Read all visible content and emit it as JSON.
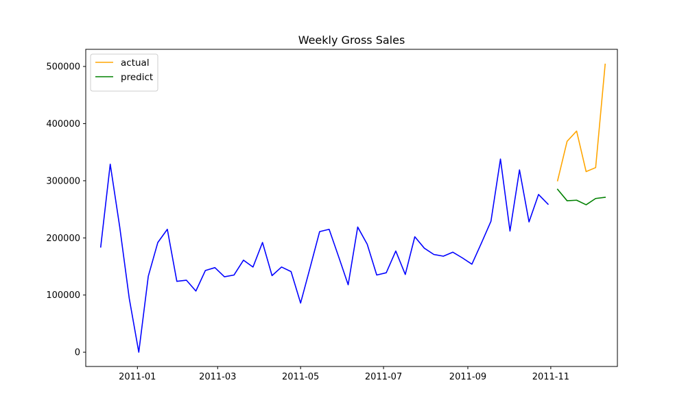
{
  "chart_data": {
    "type": "line",
    "title": "Weekly Gross Sales",
    "xlabel": "",
    "ylabel": "",
    "x_axis": "date",
    "xlim": [
      "2010-11-24",
      "2011-12-20"
    ],
    "ylim": [
      -25000,
      530000
    ],
    "x_ticks": [
      "2011-01-01",
      "2011-03-01",
      "2011-05-01",
      "2011-07-01",
      "2011-09-01",
      "2011-11-01"
    ],
    "x_tick_labels": [
      "2011-01",
      "2011-03",
      "2011-05",
      "2011-07",
      "2011-09",
      "2011-11"
    ],
    "y_ticks": [
      0,
      100000,
      200000,
      300000,
      400000,
      500000
    ],
    "y_tick_labels": [
      "0",
      "100000",
      "200000",
      "300000",
      "400000",
      "500000"
    ],
    "grid": false,
    "legend_position": "top-left",
    "series": [
      {
        "name": "",
        "color": "#0000ff",
        "x": [
          "2010-12-05",
          "2010-12-12",
          "2010-12-19",
          "2010-12-26",
          "2011-01-02",
          "2011-01-09",
          "2011-01-16",
          "2011-01-23",
          "2011-01-30",
          "2011-02-06",
          "2011-02-13",
          "2011-02-20",
          "2011-02-27",
          "2011-03-06",
          "2011-03-13",
          "2011-03-20",
          "2011-03-27",
          "2011-04-03",
          "2011-04-10",
          "2011-04-17",
          "2011-04-24",
          "2011-05-01",
          "2011-05-08",
          "2011-05-15",
          "2011-05-22",
          "2011-05-29",
          "2011-06-05",
          "2011-06-12",
          "2011-06-19",
          "2011-06-26",
          "2011-07-03",
          "2011-07-10",
          "2011-07-17",
          "2011-07-24",
          "2011-07-31",
          "2011-08-07",
          "2011-08-14",
          "2011-08-21",
          "2011-08-28",
          "2011-09-04",
          "2011-09-11",
          "2011-09-18",
          "2011-09-25",
          "2011-10-02",
          "2011-10-09",
          "2011-10-16",
          "2011-10-23",
          "2011-10-30"
        ],
        "values": [
          184000,
          329000,
          219000,
          94000,
          0,
          133000,
          192000,
          215000,
          124000,
          126000,
          107000,
          143000,
          148000,
          132000,
          135000,
          161000,
          149000,
          192000,
          134000,
          149000,
          141000,
          86000,
          148000,
          211000,
          215000,
          167000,
          118000,
          219000,
          189000,
          135000,
          139000,
          177000,
          136000,
          202000,
          182000,
          171000,
          168000,
          175000,
          165000,
          154000,
          191000,
          229000,
          338000,
          212000,
          319000,
          228000,
          276000,
          259000
        ]
      },
      {
        "name": "actual",
        "color": "#ffa500",
        "x": [
          "2011-11-06",
          "2011-11-13",
          "2011-11-20",
          "2011-11-27",
          "2011-12-04",
          "2011-12-11"
        ],
        "values": [
          300000,
          369000,
          387000,
          316000,
          323000,
          504000
        ]
      },
      {
        "name": "predict",
        "color": "#008000",
        "x": [
          "2011-11-06",
          "2011-11-13",
          "2011-11-20",
          "2011-11-27",
          "2011-12-04",
          "2011-12-11"
        ],
        "values": [
          285000,
          265000,
          266000,
          258000,
          269000,
          271000
        ]
      }
    ]
  }
}
